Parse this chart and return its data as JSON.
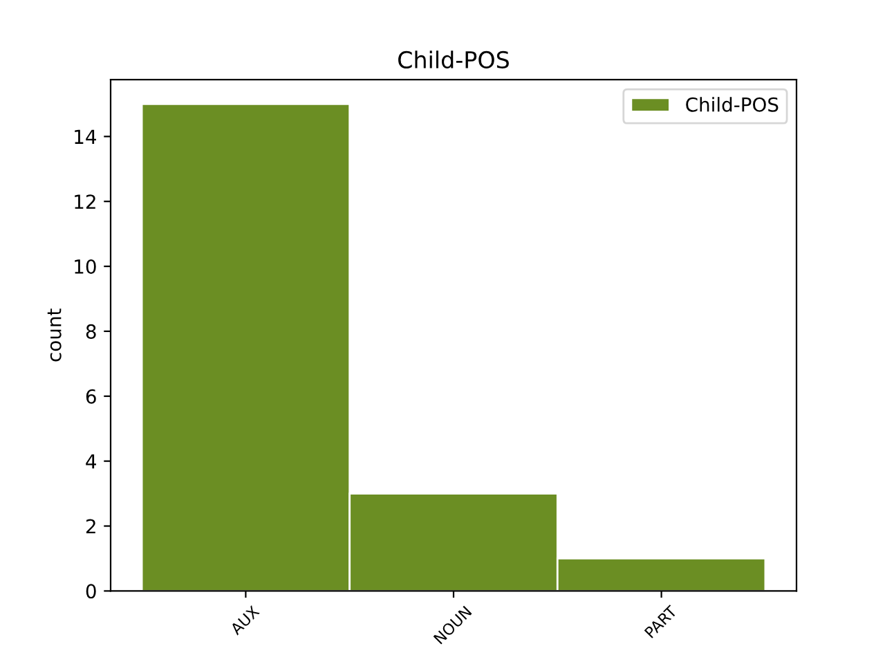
{
  "chart_data": {
    "type": "bar",
    "title": "Child-POS",
    "ylabel": "count",
    "categories": [
      "AUX",
      "NOUN",
      "PART"
    ],
    "series": [
      {
        "name": "Child-POS",
        "color": "#6b8e23",
        "values": [
          15,
          3,
          1
        ]
      }
    ],
    "ylim": [
      0,
      15.75
    ],
    "yticks": [
      0,
      2,
      4,
      6,
      8,
      10,
      12,
      14
    ],
    "grid": false,
    "legend": "top right"
  }
}
